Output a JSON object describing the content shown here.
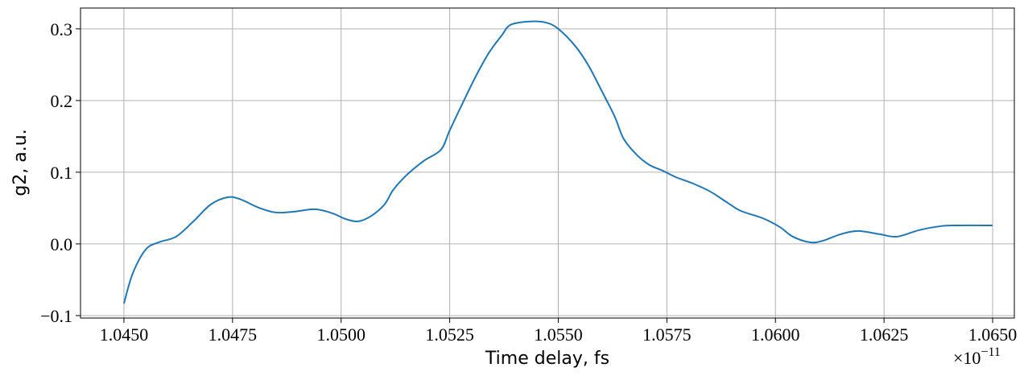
{
  "chart_data": {
    "type": "line",
    "x_label": "Time delay, fs",
    "y_label": "g2, a.u.",
    "x_offset_base": "×10",
    "x_offset_exponent": "−11",
    "grid": true,
    "xlim": [
      1.044,
      1.0655
    ],
    "ylim": [
      -0.1034,
      0.329
    ],
    "xticks": [
      {
        "value": 1.045,
        "label": "1.0450"
      },
      {
        "value": 1.0475,
        "label": "1.0475"
      },
      {
        "value": 1.05,
        "label": "1.0500"
      },
      {
        "value": 1.0525,
        "label": "1.0525"
      },
      {
        "value": 1.055,
        "label": "1.0550"
      },
      {
        "value": 1.0575,
        "label": "1.0575"
      },
      {
        "value": 1.06,
        "label": "1.0600"
      },
      {
        "value": 1.0625,
        "label": "1.0625"
      },
      {
        "value": 1.065,
        "label": "1.0650"
      }
    ],
    "yticks": [
      {
        "value": -0.1,
        "label": "−0.1"
      },
      {
        "value": 0,
        "label": "0.0"
      },
      0.1,
      0.2,
      0.3
    ],
    "x": [
      1.045,
      1.0452,
      1.0455,
      1.0458,
      1.0462,
      1.0466,
      1.047,
      1.0474,
      1.0477,
      1.0481,
      1.0485,
      1.0489,
      1.0494,
      1.0498,
      1.0501,
      1.0504,
      1.0507,
      1.051,
      1.0512,
      1.0515,
      1.0519,
      1.0523,
      1.0525,
      1.0528,
      1.0531,
      1.0534,
      1.0537,
      1.0539,
      1.0543,
      1.0547,
      1.055,
      1.0554,
      1.0557,
      1.056,
      1.0563,
      1.0565,
      1.0568,
      1.0571,
      1.0574,
      1.0577,
      1.0581,
      1.0585,
      1.0589,
      1.0592,
      1.0597,
      1.0601,
      1.0604,
      1.0608,
      1.0611,
      1.0615,
      1.0619,
      1.0624,
      1.0628,
      1.0633,
      1.0638,
      1.0642,
      1.065
    ],
    "series": [
      {
        "color": "#1f77b4",
        "values": [
          -0.0831,
          -0.0416,
          -0.0079,
          0.0022,
          0.0101,
          0.0315,
          0.0551,
          0.0652,
          0.0618,
          0.0506,
          0.0438,
          0.0449,
          0.0483,
          0.0427,
          0.0348,
          0.0315,
          0.0393,
          0.0551,
          0.0753,
          0.0955,
          0.1157,
          0.1315,
          0.1584,
          0.1966,
          0.2337,
          0.2663,
          0.291,
          0.3056,
          0.3101,
          0.309,
          0.3,
          0.2753,
          0.2483,
          0.2135,
          0.1775,
          0.1472,
          0.1247,
          0.1101,
          0.1022,
          0.0933,
          0.0843,
          0.073,
          0.0573,
          0.0461,
          0.036,
          0.0236,
          0.0101,
          0.0022,
          0.0045,
          0.0135,
          0.018,
          0.0135,
          0.0101,
          0.0191,
          0.0247,
          0.0258,
          0.0258
        ]
      }
    ]
  }
}
